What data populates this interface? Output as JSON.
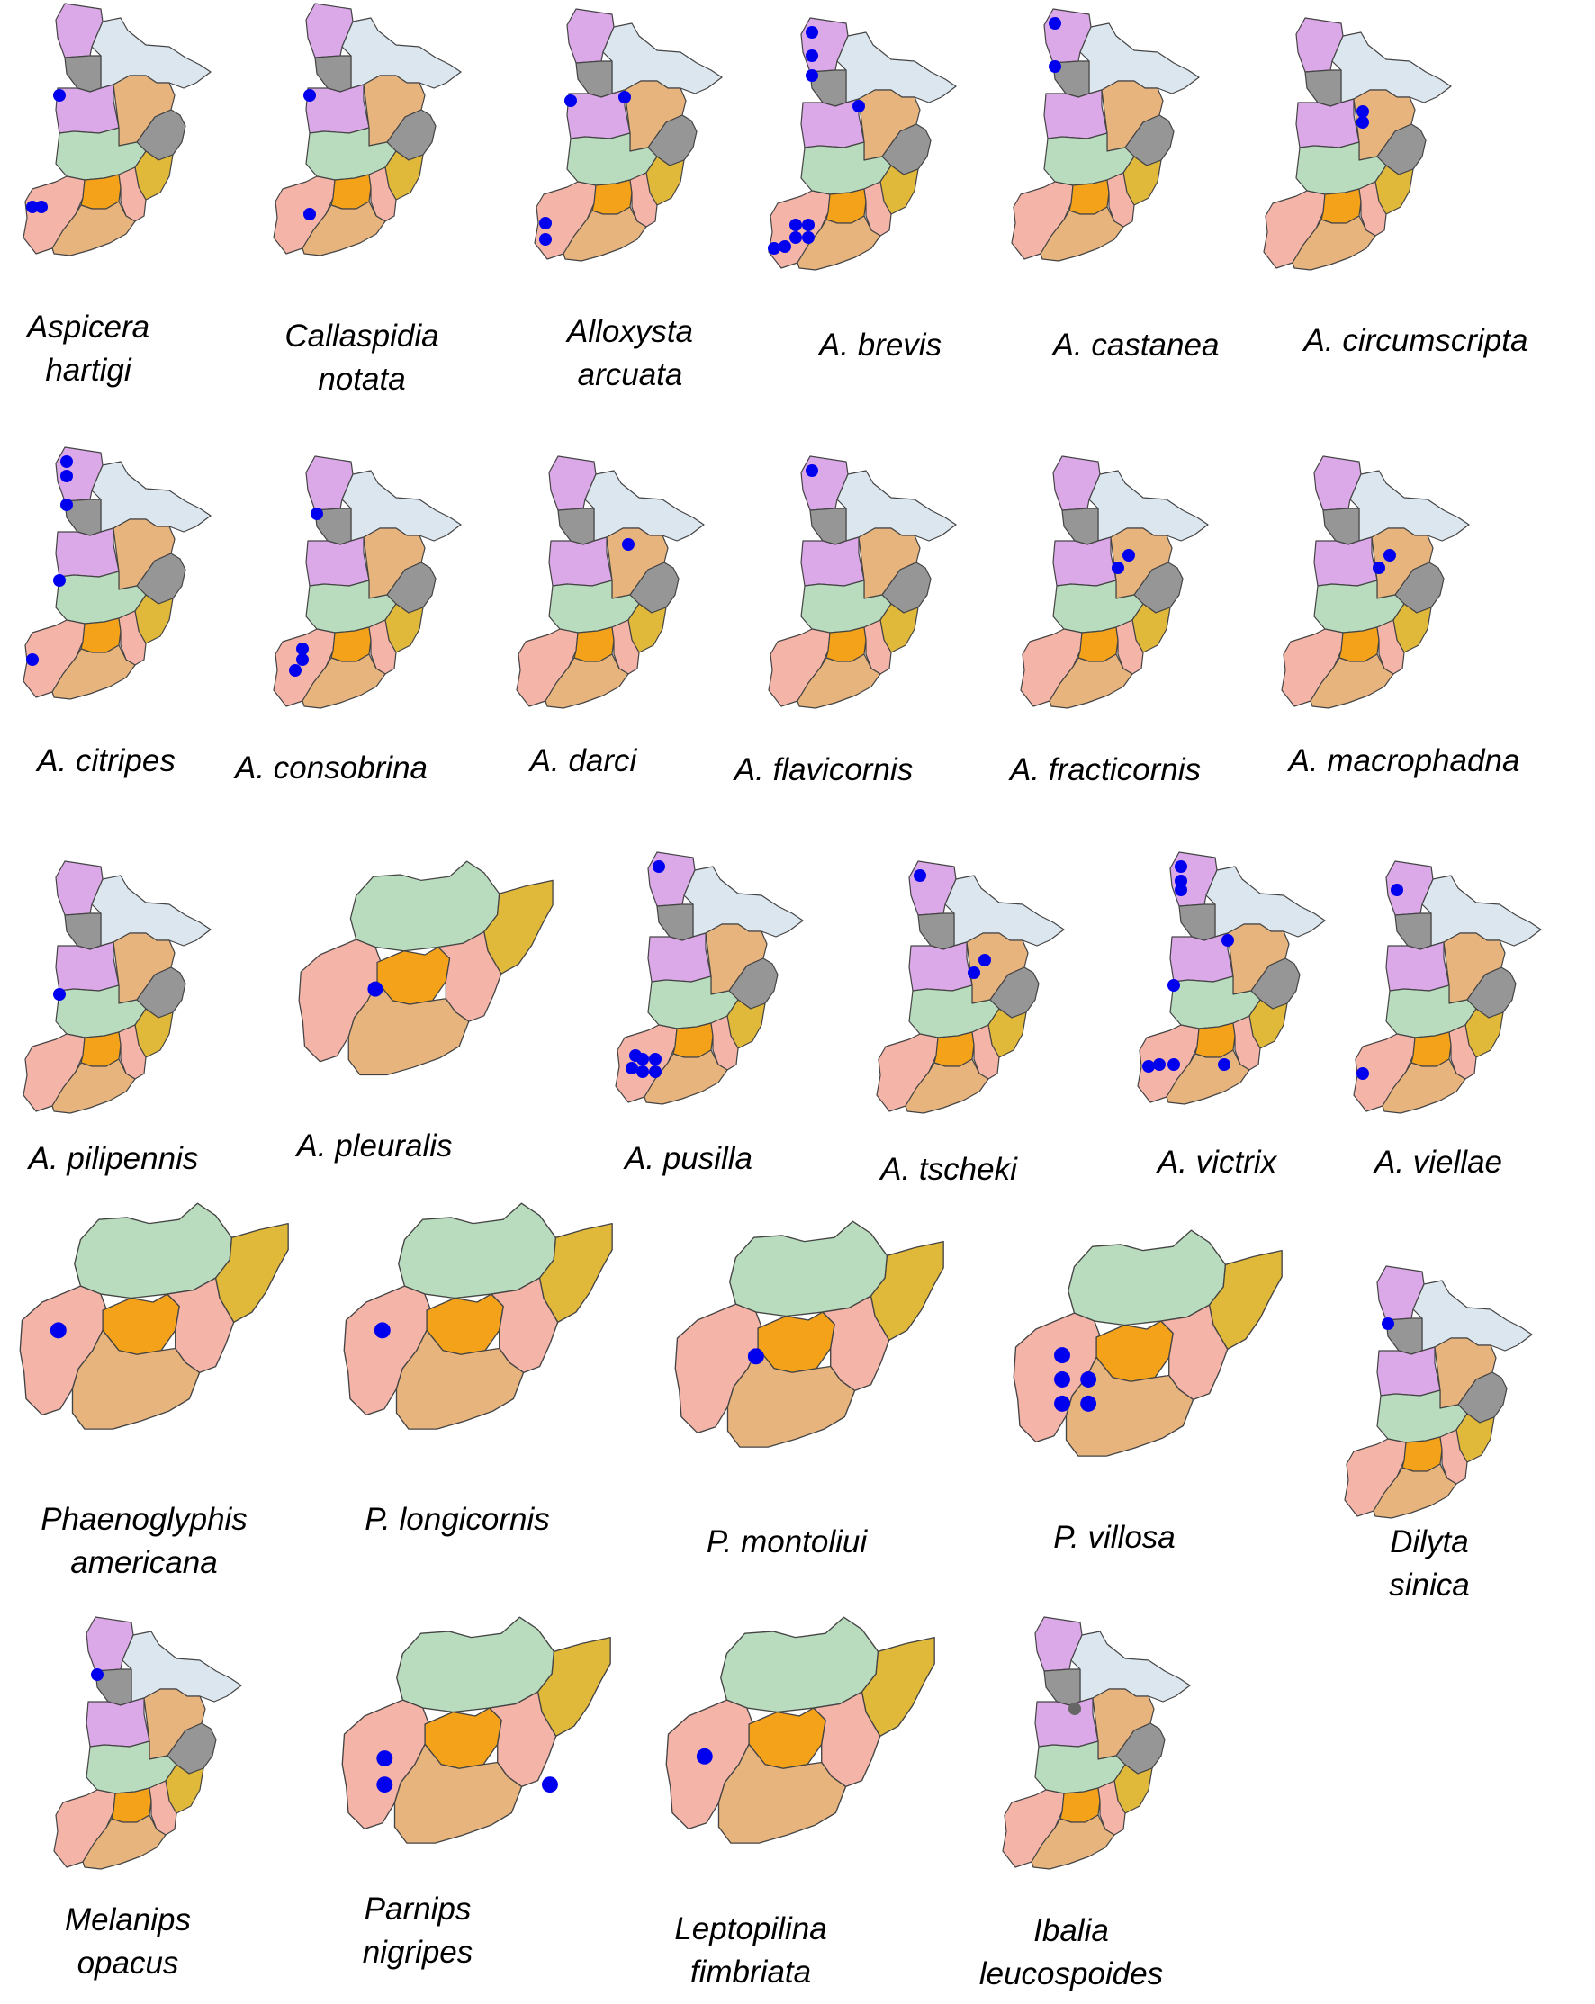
{
  "colors": {
    "violet": "#dba8e8",
    "lightblue": "#dce6ef",
    "gray": "#969696",
    "tan": "#e8b47e",
    "mint": "#b9dcbe",
    "pink": "#f5b4a8",
    "orange": "#f4a21a",
    "gold": "#e0b83a",
    "sand": "#e8b47e",
    "record": "#0000ee",
    "record_other": "#666666"
  },
  "panels": [
    {
      "name": "Aspicera hartigi",
      "label": [
        "Aspicera",
        "hartigi"
      ],
      "map": "full",
      "records": [
        "r1",
        "s1",
        "s2"
      ]
    },
    {
      "name": "Callaspidia notata",
      "label": [
        "Callaspidia",
        "notata"
      ],
      "map": "full",
      "records": [
        "r1",
        "s5"
      ]
    },
    {
      "name": "Alloxysta arcuata",
      "label": [
        "Alloxysta",
        "arcuata"
      ],
      "map": "full",
      "records": [
        "r1",
        "t3",
        "s3",
        "s4"
      ]
    },
    {
      "name": "A. brevis",
      "label": [
        "A. brevis"
      ],
      "map": "full",
      "records": [
        "n1",
        "n2",
        "n3",
        "t3",
        "s6",
        "s7",
        "s8",
        "s9",
        "s10",
        "s11"
      ]
    },
    {
      "name": "A. castanea",
      "label": [
        "A. castanea"
      ],
      "map": "full",
      "records": [
        "n1",
        "n3"
      ]
    },
    {
      "name": "A. circumscripta",
      "label": [
        "A. circumscripta"
      ],
      "map": "full",
      "records": [
        "t1",
        "t2"
      ]
    },
    {
      "name": "A. citripes",
      "label": [
        "A. citripes"
      ],
      "map": "full",
      "records": [
        "n1",
        "n4",
        "n3",
        "r2",
        "s12"
      ]
    },
    {
      "name": "A. consobrina",
      "label": [
        "A. consobrina"
      ],
      "map": "full",
      "records": [
        "n3",
        "s13",
        "s14",
        "s15"
      ]
    },
    {
      "name": "A. darci",
      "label": [
        "A. darci"
      ],
      "map": "full",
      "records": [
        "t4"
      ]
    },
    {
      "name": "A. flavicornis",
      "label": [
        "A. flavicornis"
      ],
      "map": "full",
      "records": [
        "n1"
      ]
    },
    {
      "name": "A. fracticornis",
      "label": [
        "A. fracticornis"
      ],
      "map": "full",
      "records": [
        "t5",
        "t6"
      ]
    },
    {
      "name": "A. macrophadna",
      "label": [
        "A. macrophadna"
      ],
      "map": "full",
      "records": [
        "t5",
        "t6"
      ]
    },
    {
      "name": "A. pilipennis",
      "label": [
        "A. pilipennis"
      ],
      "map": "full",
      "records": [
        "r2"
      ]
    },
    {
      "name": "A. pleuralis",
      "label": [
        "A. pleuralis"
      ],
      "map": "south",
      "records": [
        "q3"
      ]
    },
    {
      "name": "A. pusilla",
      "label": [
        "A. pusilla"
      ],
      "map": "full",
      "records": [
        "n1",
        "s6",
        "s7",
        "s8",
        "s9",
        "s16",
        "s17"
      ]
    },
    {
      "name": "A. tscheki",
      "label": [
        "A. tscheki"
      ],
      "map": "full",
      "records": [
        "n1",
        "t5",
        "t6"
      ]
    },
    {
      "name": "A. victrix",
      "label": [
        "A. victrix"
      ],
      "map": "full",
      "records": [
        "n1",
        "n2",
        "n4",
        "r2",
        "t3",
        "s3",
        "s18",
        "s19",
        "s20"
      ]
    },
    {
      "name": "A. viellae",
      "label": [
        "A. viellae"
      ],
      "map": "full",
      "records": [
        "n4",
        "s12"
      ]
    },
    {
      "name": "Phaenoglyphis americana",
      "label": [
        "Phaenoglyphis",
        "americana"
      ],
      "map": "south",
      "records": [
        "q1"
      ]
    },
    {
      "name": "P. longicornis",
      "label": [
        "P. longicornis"
      ],
      "map": "south",
      "records": [
        "q1"
      ]
    },
    {
      "name": "P. montoliui",
      "label": [
        "P. montoliui"
      ],
      "map": "south",
      "records": [
        "q3"
      ]
    },
    {
      "name": "P. villosa",
      "label": [
        "P. villosa"
      ],
      "map": "south",
      "records": [
        "q4",
        "q5",
        "q6",
        "q7",
        "q8"
      ]
    },
    {
      "name": "Dilyta sinica",
      "label": [
        "Dilyta",
        "sinica"
      ],
      "map": "full",
      "records": [
        "n3"
      ]
    },
    {
      "name": "Melanips opacus",
      "label": [
        "Melanips",
        "opacus"
      ],
      "map": "full",
      "records": [
        "n3"
      ]
    },
    {
      "name": "Parnips nigripes",
      "label": [
        "Parnips",
        "nigripes"
      ],
      "map": "south",
      "records": [
        "q9",
        "q10",
        "q11"
      ]
    },
    {
      "name": "Leptopilina fimbriata",
      "label": [
        "Leptopilina",
        "fimbriata"
      ],
      "map": "south",
      "records": [
        "q2"
      ]
    },
    {
      "name": "Ibalia leucospoides",
      "label": [
        "Ibalia",
        "leucospoides"
      ],
      "map": "full",
      "records": [
        "g1"
      ]
    }
  ]
}
